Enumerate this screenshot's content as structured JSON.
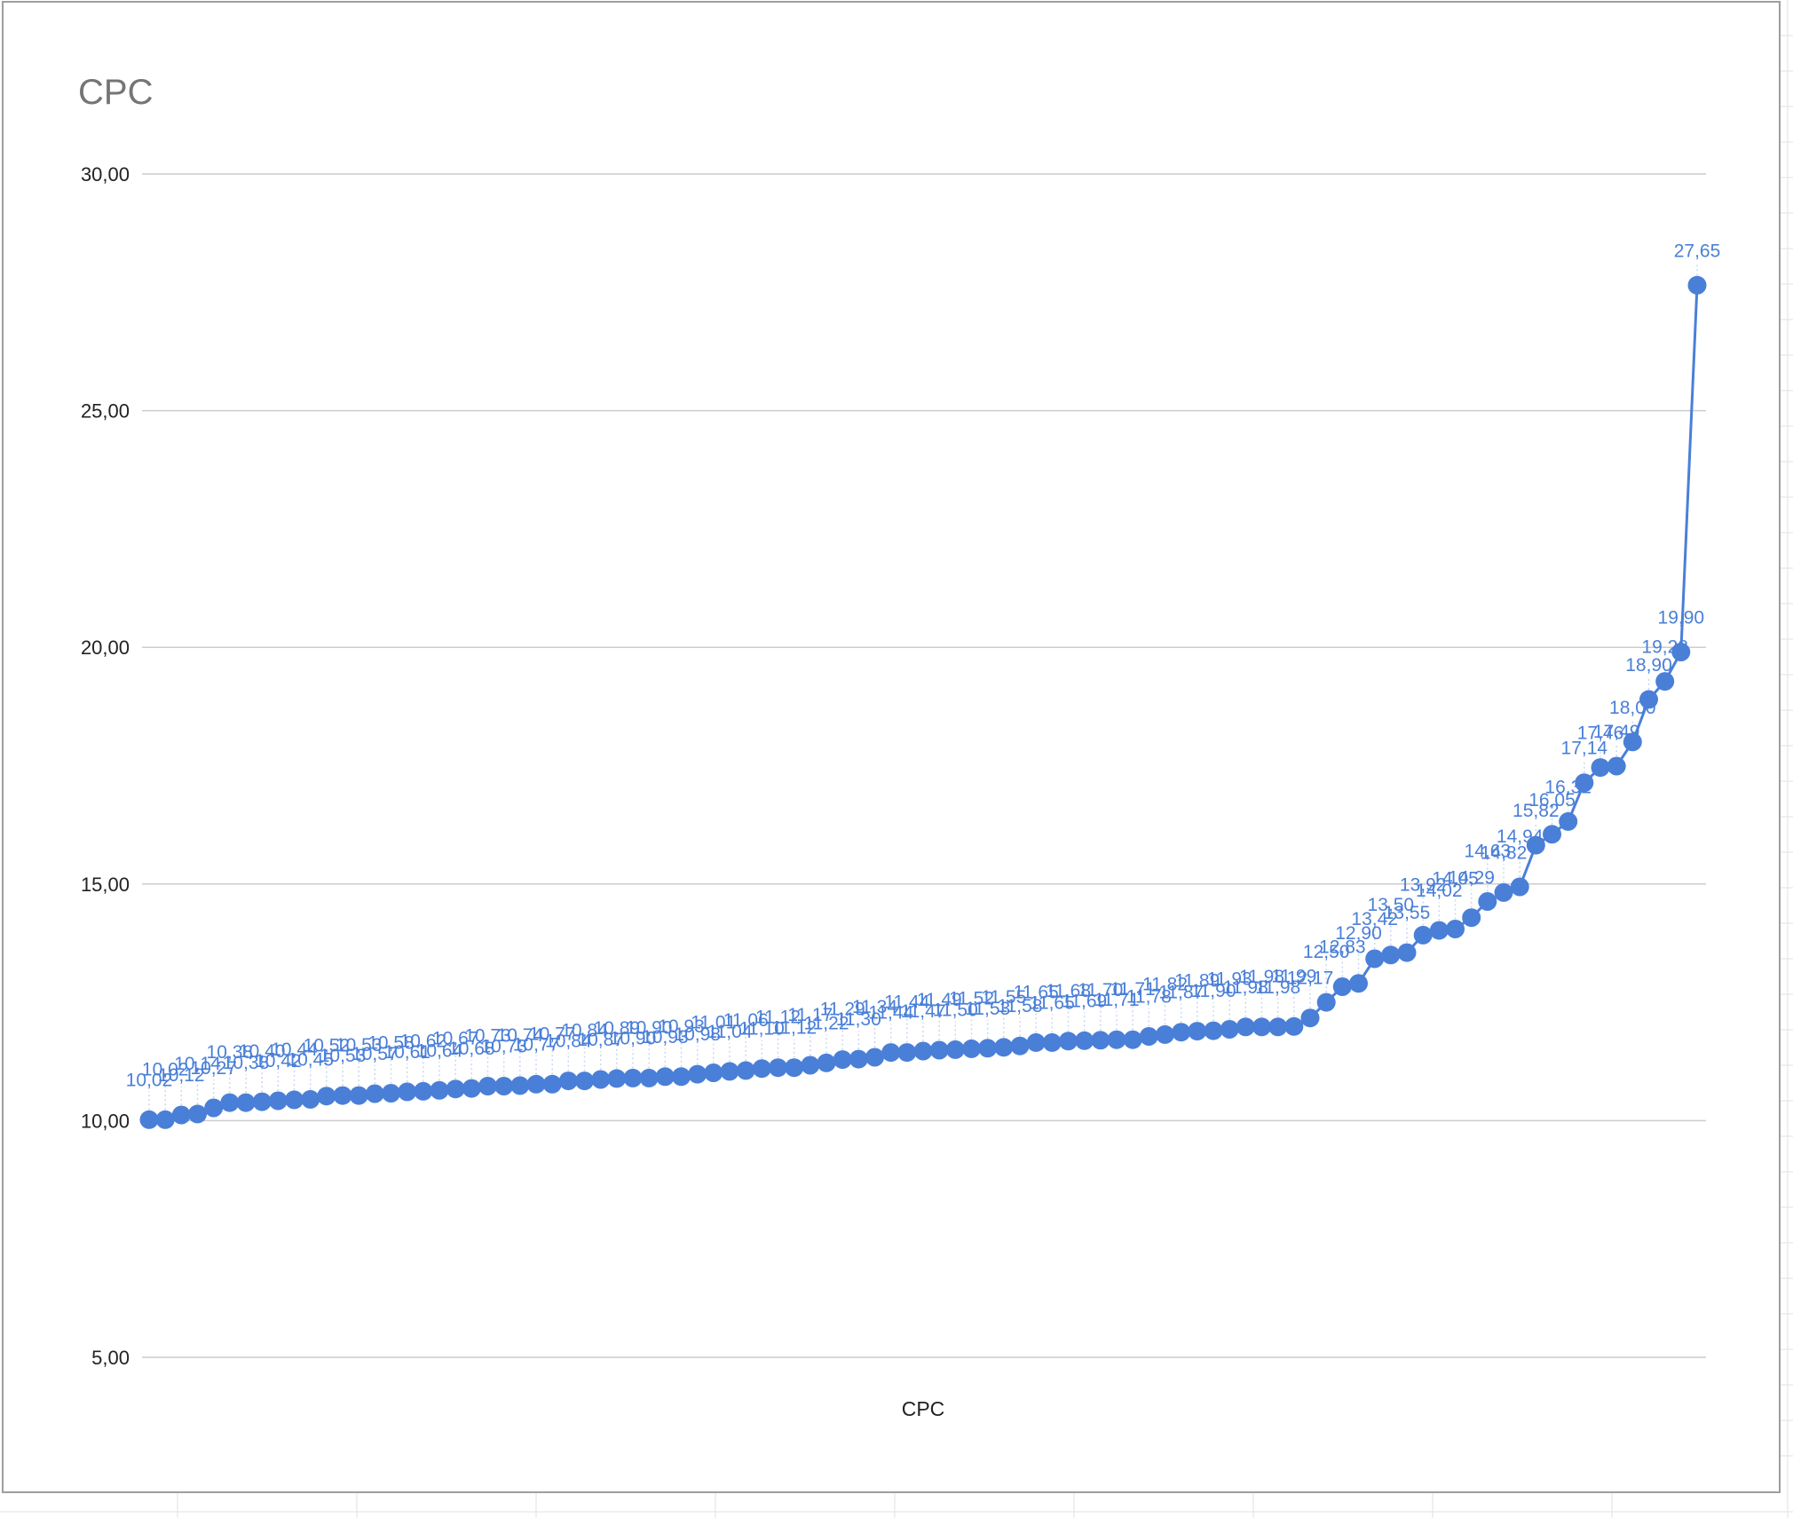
{
  "chart_data": {
    "type": "line",
    "title": "CPC",
    "xlabel": "CPC",
    "ylabel": "",
    "ylim": [
      5,
      30
    ],
    "yticks": [
      "5,00",
      "10,00",
      "15,00",
      "20,00",
      "25,00",
      "30,00"
    ],
    "ytick_values": [
      5,
      10,
      15,
      20,
      25,
      30
    ],
    "grid": true,
    "legend": "none",
    "point_labels": true,
    "decimal_separator": ",",
    "line_color": "#4a7fd8",
    "series": [
      {
        "values": [
          10.02,
          10.02,
          10.12,
          10.14,
          10.27,
          10.38,
          10.38,
          10.4,
          10.42,
          10.44,
          10.45,
          10.52,
          10.53,
          10.53,
          10.57,
          10.58,
          10.61,
          10.62,
          10.64,
          10.67,
          10.68,
          10.73,
          10.73,
          10.74,
          10.77,
          10.77,
          10.84,
          10.84,
          10.87,
          10.89,
          10.9,
          10.9,
          10.93,
          10.93,
          10.98,
          11.01,
          11.04,
          11.06,
          11.1,
          11.12,
          11.12,
          11.17,
          11.22,
          11.29,
          11.3,
          11.34,
          11.44,
          11.44,
          11.47,
          11.49,
          11.5,
          11.52,
          11.53,
          11.55,
          11.58,
          11.65,
          11.65,
          11.68,
          11.69,
          11.7,
          11.71,
          11.71,
          11.78,
          11.82,
          11.87,
          11.89,
          11.9,
          11.93,
          11.98,
          11.98,
          11.98,
          11.99,
          12.17,
          12.5,
          12.83,
          12.9,
          13.42,
          13.5,
          13.55,
          13.92,
          14.02,
          14.05,
          14.29,
          14.63,
          14.82,
          14.94,
          15.82,
          16.05,
          16.32,
          17.14,
          17.46,
          17.49,
          18.0,
          18.9,
          19.28,
          19.9,
          27.65
        ]
      }
    ]
  }
}
